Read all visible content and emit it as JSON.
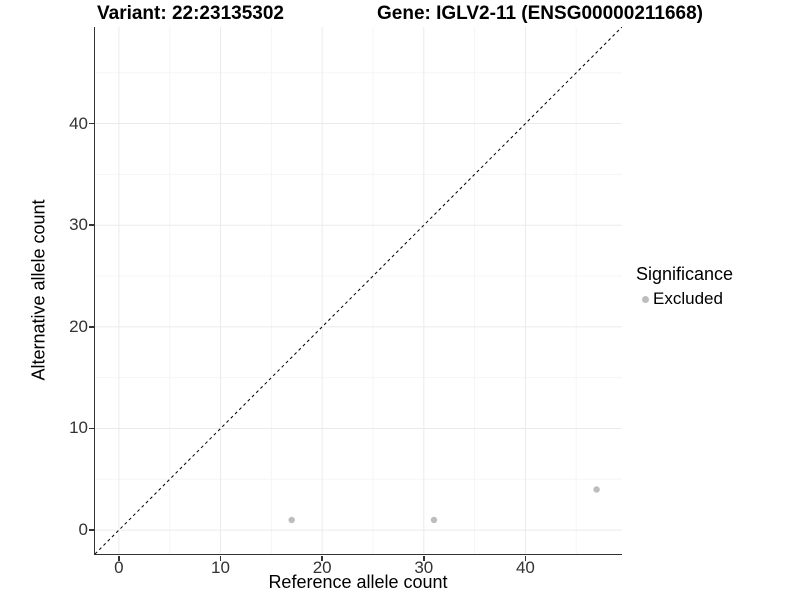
{
  "titles": {
    "variant": "Variant: 22:23135302",
    "gene": "Gene: IGLV2-11 (ENSG00000211668)"
  },
  "chart_data": {
    "type": "scatter",
    "xlabel": "Reference allele count",
    "ylabel": "Alternative allele count",
    "xlim": [
      -2.35,
      49.5
    ],
    "ylim": [
      -2.35,
      49.5
    ],
    "xticks": [
      0,
      10,
      20,
      30,
      40
    ],
    "yticks": [
      0,
      10,
      20,
      30,
      40
    ],
    "xticks_minor": [
      5,
      15,
      25,
      35,
      45
    ],
    "yticks_minor": [
      5,
      15,
      25,
      35,
      45
    ],
    "grid": "major+minor",
    "identity_line": {
      "slope": 1,
      "intercept": 0,
      "style": "dashed",
      "color": "#000000"
    },
    "series": [
      {
        "name": "Excluded",
        "color": "#bdbdbd",
        "points": [
          {
            "x": 17,
            "y": 1
          },
          {
            "x": 31,
            "y": 1
          },
          {
            "x": 47,
            "y": 4
          }
        ]
      }
    ],
    "legend": {
      "title": "Significance",
      "position": "right",
      "items": [
        {
          "label": "Excluded",
          "color": "#bdbdbd"
        }
      ]
    }
  },
  "colors": {
    "background": "#ffffff",
    "grid_major": "#ebebeb",
    "grid_minor": "#f5f5f5",
    "axis_line": "#333333",
    "tick_text": "#333333"
  }
}
